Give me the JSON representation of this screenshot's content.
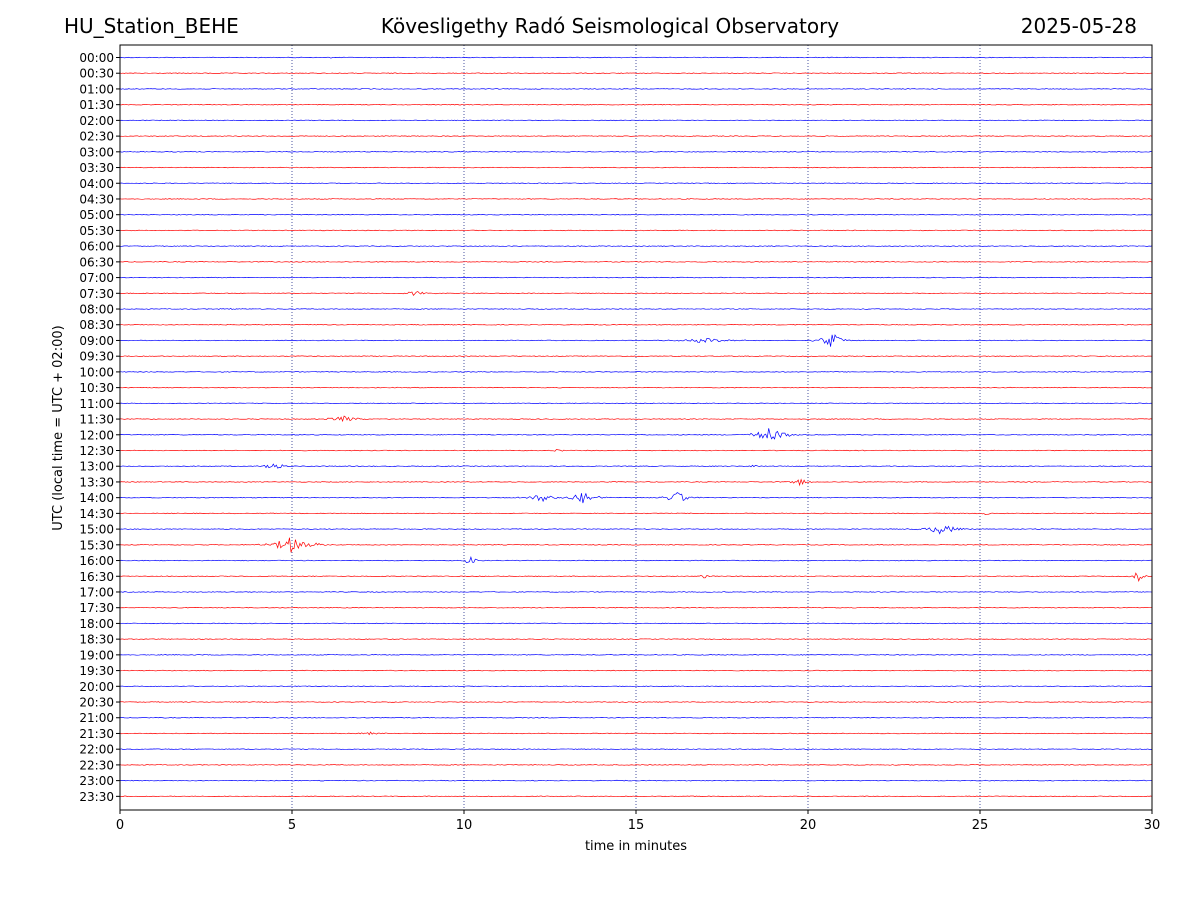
{
  "header": {
    "station": "HU_Station_BEHE",
    "title": "Kövesligethy Radó Seismological Observatory",
    "date": "2025-05-28"
  },
  "chart_data": {
    "type": "line",
    "title": "Kövesligethy Radó Seismological Observatory",
    "xlabel": "time in minutes",
    "ylabel": "UTC (local time = UTC + 02:00)",
    "xlim": [
      0,
      30
    ],
    "xticks": [
      "0",
      "5",
      "10",
      "15",
      "20",
      "25",
      "30"
    ],
    "vertical_grid_at": [
      5,
      10,
      15,
      20,
      25
    ],
    "row_labels": [
      "00:00",
      "00:30",
      "01:00",
      "01:30",
      "02:00",
      "02:30",
      "03:00",
      "03:30",
      "04:00",
      "04:30",
      "05:00",
      "05:30",
      "06:00",
      "06:30",
      "07:00",
      "07:30",
      "08:00",
      "08:30",
      "09:00",
      "09:30",
      "10:00",
      "10:30",
      "11:00",
      "11:30",
      "12:00",
      "12:30",
      "13:00",
      "13:30",
      "14:00",
      "14:30",
      "15:00",
      "15:30",
      "16:00",
      "16:30",
      "17:00",
      "17:30",
      "18:00",
      "18:30",
      "19:00",
      "19:30",
      "20:00",
      "20:30",
      "21:00",
      "21:30",
      "22:00",
      "22:30",
      "23:00",
      "23:30"
    ],
    "colors": {
      "even_rows": "#0000ff",
      "odd_rows": "#ff0000",
      "grid": "#1f2a8a"
    },
    "events": [
      {
        "row": "00:00",
        "minute": 6.1,
        "amp": 0.25,
        "dur": 0.1
      },
      {
        "row": "07:30",
        "minute": 8.6,
        "amp": 0.35,
        "dur": 0.6
      },
      {
        "row": "08:00",
        "minute": 3.2,
        "amp": 0.15,
        "dur": 0.5
      },
      {
        "row": "09:00",
        "minute": 17.0,
        "amp": 0.3,
        "dur": 1.5
      },
      {
        "row": "09:00",
        "minute": 20.7,
        "amp": 1.0,
        "dur": 0.7
      },
      {
        "row": "11:30",
        "minute": 6.5,
        "amp": 0.35,
        "dur": 1.0
      },
      {
        "row": "12:00",
        "minute": 18.9,
        "amp": 0.9,
        "dur": 1.0
      },
      {
        "row": "12:30",
        "minute": 12.7,
        "amp": 0.35,
        "dur": 0.3
      },
      {
        "row": "13:00",
        "minute": 4.5,
        "amp": 0.6,
        "dur": 0.6
      },
      {
        "row": "13:00",
        "minute": 18.4,
        "amp": 0.35,
        "dur": 0.2
      },
      {
        "row": "13:30",
        "minute": 19.8,
        "amp": 0.45,
        "dur": 0.5
      },
      {
        "row": "14:00",
        "minute": 12.3,
        "amp": 0.55,
        "dur": 0.9
      },
      {
        "row": "14:00",
        "minute": 13.5,
        "amp": 0.8,
        "dur": 0.8
      },
      {
        "row": "14:00",
        "minute": 16.2,
        "amp": 0.8,
        "dur": 0.7
      },
      {
        "row": "14:30",
        "minute": 25.2,
        "amp": 0.45,
        "dur": 0.2
      },
      {
        "row": "15:00",
        "minute": 23.9,
        "amp": 0.6,
        "dur": 1.2
      },
      {
        "row": "15:30",
        "minute": 5.0,
        "amp": 1.0,
        "dur": 1.3
      },
      {
        "row": "16:00",
        "minute": 10.2,
        "amp": 0.7,
        "dur": 0.4
      },
      {
        "row": "16:30",
        "minute": 29.6,
        "amp": 0.8,
        "dur": 0.3
      },
      {
        "row": "16:30",
        "minute": 17.0,
        "amp": 0.25,
        "dur": 0.3
      },
      {
        "row": "21:30",
        "minute": 7.3,
        "amp": 0.25,
        "dur": 0.6
      }
    ]
  }
}
